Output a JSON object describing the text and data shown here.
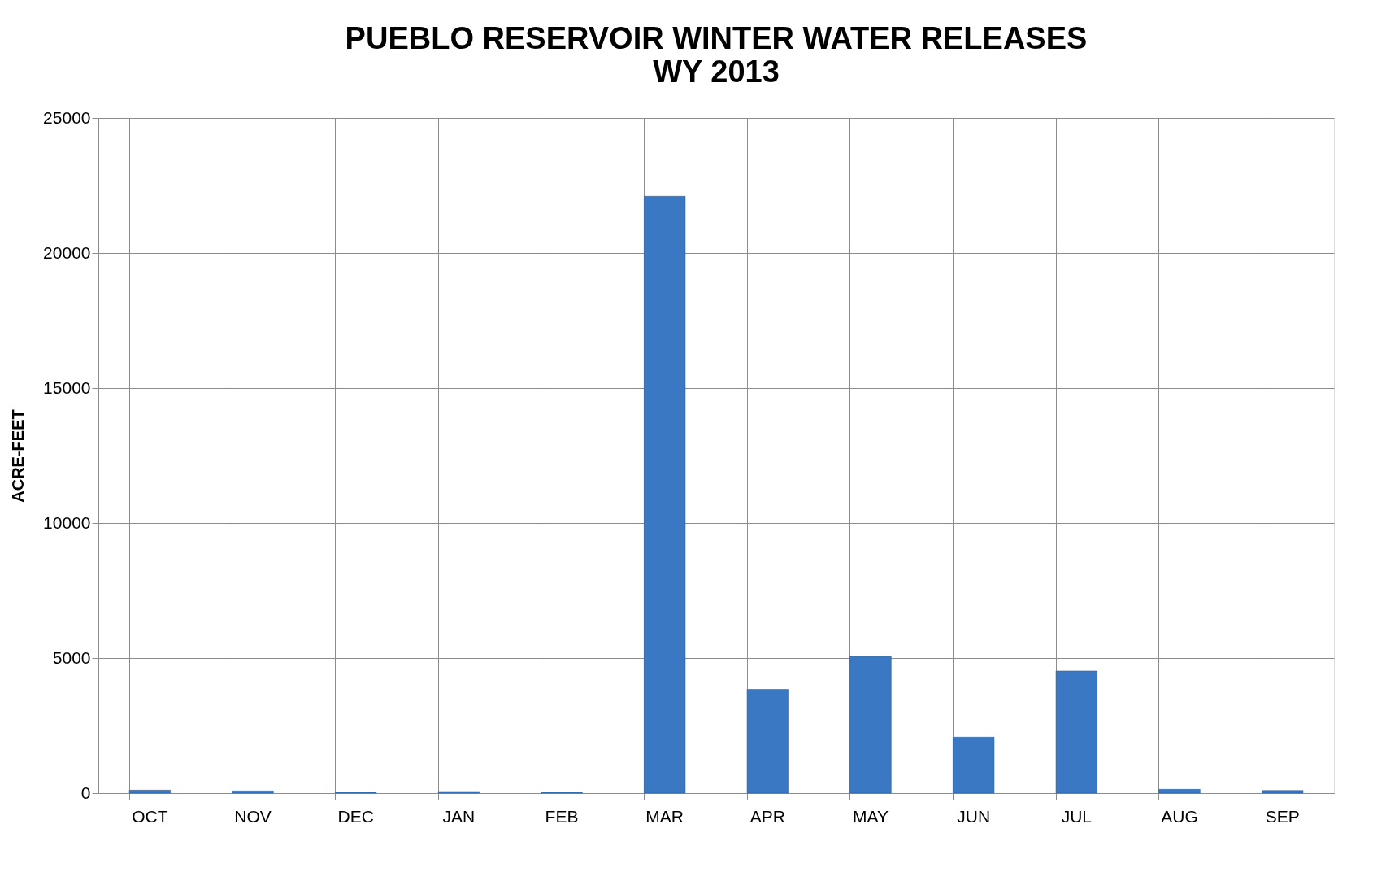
{
  "chart_data": {
    "type": "bar",
    "title": "PUEBLO RESERVOIR WINTER WATER RELEASES",
    "subtitle": "WY 2013",
    "ylabel": "ACRE-FEET",
    "categories": [
      "OCT",
      "NOV",
      "DEC",
      "JAN",
      "FEB",
      "MAR",
      "APR",
      "MAY",
      "JUN",
      "JUL",
      "AUG",
      "SEP"
    ],
    "values": [
      110,
      80,
      30,
      60,
      30,
      22100,
      3840,
      5070,
      2070,
      4520,
      140,
      100
    ],
    "color": "#3b78c4",
    "ylim": [
      0,
      25000
    ],
    "yticks": [
      0,
      5000,
      10000,
      15000,
      20000,
      25000
    ],
    "grid": true
  }
}
